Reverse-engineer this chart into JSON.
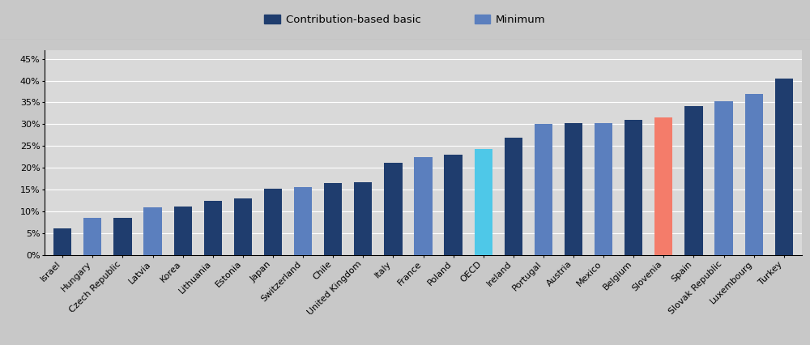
{
  "countries": [
    "Israel",
    "Hungary",
    "Czech Republic",
    "Latvia",
    "Korea",
    "Lithuania",
    "Estonia",
    "Japan",
    "Switzerland",
    "Chile",
    "United Kingdom",
    "Italy",
    "France",
    "Poland",
    "OECD",
    "Ireland",
    "Portugal",
    "Austria",
    "Mexico",
    "Belgium",
    "Slovenia",
    "Spain",
    "Slovak Republic",
    "Luxembourg",
    "Turkey"
  ],
  "values": [
    6.2,
    8.5,
    8.5,
    11.0,
    11.2,
    12.5,
    13.0,
    15.2,
    15.7,
    16.5,
    16.7,
    21.2,
    22.5,
    23.0,
    24.3,
    27.0,
    30.0,
    30.2,
    30.2,
    31.0,
    31.5,
    34.2,
    35.2,
    37.0,
    40.5
  ],
  "bar_types": [
    "contrib",
    "min",
    "contrib",
    "min",
    "contrib",
    "contrib",
    "contrib",
    "contrib",
    "min",
    "contrib",
    "contrib",
    "contrib",
    "min",
    "contrib",
    "min_cyan",
    "contrib",
    "min",
    "contrib",
    "min",
    "contrib",
    "highlight_red",
    "contrib",
    "min",
    "min",
    "contrib"
  ],
  "colors": {
    "contrib": "#1f3d6e",
    "min": "#5b7fbe",
    "min_cyan": "#4ec8e8",
    "highlight_red": "#f47c6a"
  },
  "legend_labels": [
    "Contribution-based basic",
    "Minimum"
  ],
  "legend_colors": [
    "#1f3d6e",
    "#5b7fbe"
  ],
  "ylim": [
    0,
    0.47
  ],
  "yticks": [
    0.0,
    0.05,
    0.1,
    0.15,
    0.2,
    0.25,
    0.3,
    0.35,
    0.4,
    0.45
  ],
  "ytick_labels": [
    "0%",
    "5%",
    "10%",
    "15%",
    "20%",
    "25%",
    "30%",
    "35%",
    "40%",
    "45%"
  ],
  "fig_bg_color": "#c8c8c8",
  "banner_bg_color": "#c8c8c8",
  "plot_bg_color": "#d9d9d9",
  "bar_width": 0.6,
  "grid_color": "#ffffff",
  "tick_fontsize": 8.0,
  "legend_fontsize": 9.5,
  "axis_color": "#000000"
}
